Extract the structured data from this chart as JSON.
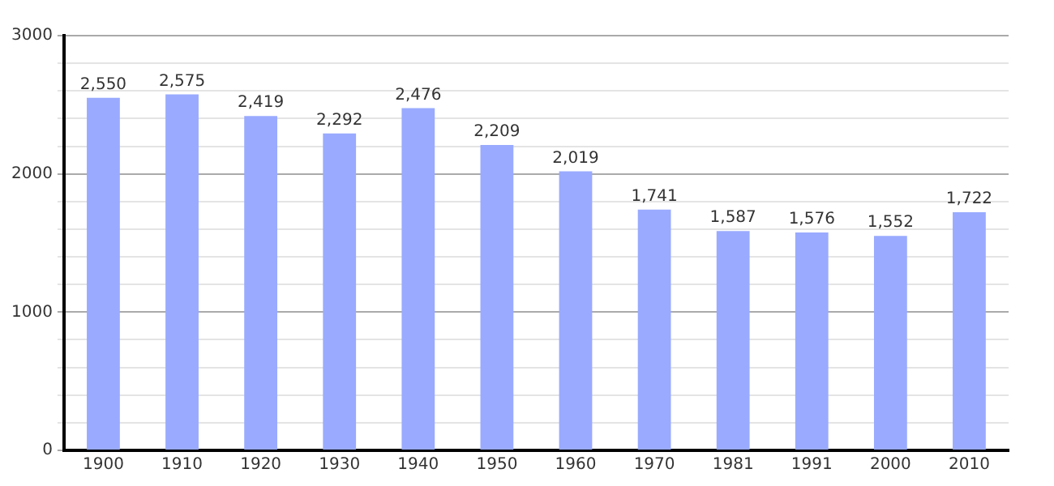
{
  "chart_data": {
    "type": "bar",
    "categories": [
      "1900",
      "1910",
      "1920",
      "1930",
      "1940",
      "1950",
      "1960",
      "1970",
      "1981",
      "1991",
      "2000",
      "2010"
    ],
    "values": [
      2550,
      2575,
      2419,
      2292,
      2476,
      2209,
      2019,
      1741,
      1587,
      1576,
      1552,
      1722
    ],
    "value_labels": [
      "2,550",
      "2,575",
      "2,419",
      "2,292",
      "2,476",
      "2,209",
      "2,019",
      "1,741",
      "1,587",
      "1,576",
      "1,552",
      "1,722"
    ],
    "color": "#99aaff",
    "ylim": [
      0,
      3000
    ],
    "yticks": [
      0,
      {
        "value": 200,
        "label": null
      },
      {
        "value": 400,
        "label": null
      },
      {
        "value": 600,
        "label": null
      },
      {
        "value": 800,
        "label": null
      },
      1000,
      {
        "value": 1200,
        "label": null
      },
      {
        "value": 1400,
        "label": null
      },
      {
        "value": 1600,
        "label": null
      },
      {
        "value": 1800,
        "label": null
      },
      2000,
      {
        "value": 2200,
        "label": null
      },
      {
        "value": 2400,
        "label": null
      },
      {
        "value": 2600,
        "label": null
      },
      {
        "value": 2800,
        "label": null
      },
      3000
    ],
    "grid": "y",
    "legend": false
  }
}
